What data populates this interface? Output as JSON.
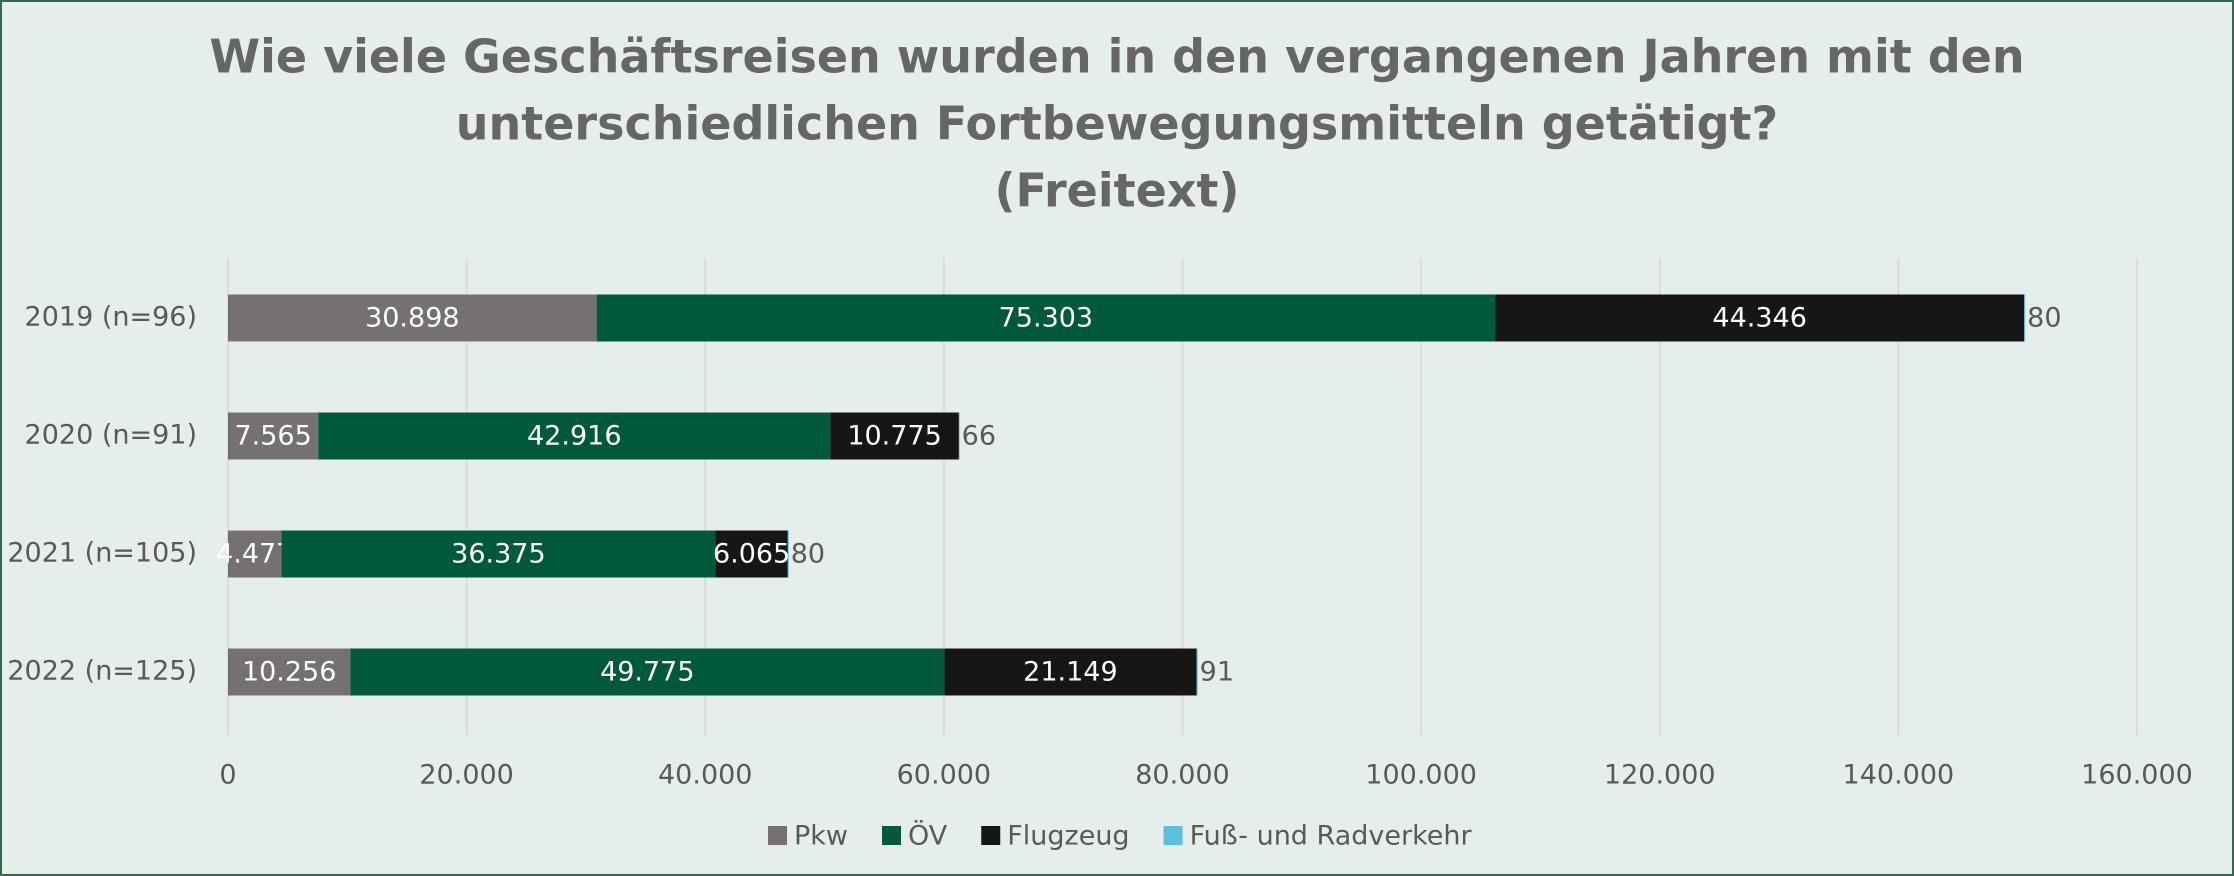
{
  "chart_data": {
    "type": "stacked-bar-horizontal",
    "title": [
      "Wie viele Geschäftsreisen wurden in den vergangenen Jahren mit den",
      "unterschiedlichen Fortbewegungsmitteln getätigt?"
    ],
    "subtitle": "(Freitext)",
    "categories": [
      "2019 (n=96)",
      "2020 (n=91)",
      "2021 (n=105)",
      "2022 (n=125)"
    ],
    "series": [
      {
        "name": "Pkw",
        "color": "#767171",
        "values": [
          30898,
          7565,
          4477,
          10256
        ],
        "value_labels": [
          "30.898",
          "7.565",
          "4.477",
          "10.256"
        ]
      },
      {
        "name": "ÖV",
        "color": "#00593a",
        "values": [
          75303,
          42916,
          36375,
          49775
        ],
        "value_labels": [
          "75.303",
          "42.916",
          "36.375",
          "49.775"
        ]
      },
      {
        "name": "Flugzeug",
        "color": "#161616",
        "values": [
          44346,
          10775,
          6065,
          21149
        ],
        "value_labels": [
          "44.346",
          "10.775",
          "6.065",
          "21.149"
        ]
      },
      {
        "name": "Fuß- und Radverkehr",
        "color": "#5bc0de",
        "values": [
          80,
          66,
          80,
          91
        ],
        "value_labels": [
          "80",
          "66",
          "80",
          "91"
        ]
      }
    ],
    "xlim": [
      0,
      160000
    ],
    "xticks": [
      0,
      {
        "value": 20000,
        "label": "20.000"
      },
      {
        "value": 40000,
        "label": "40.000"
      },
      {
        "value": 60000,
        "label": "60.000"
      },
      {
        "value": 80000,
        "label": "80.000"
      },
      {
        "value": 100000,
        "label": "100.000"
      },
      {
        "value": 120000,
        "label": "120.000"
      },
      {
        "value": 140000,
        "label": "140.000"
      },
      {
        "value": 160000,
        "label": "160.000"
      }
    ],
    "grid": true,
    "legend": "bottom"
  }
}
